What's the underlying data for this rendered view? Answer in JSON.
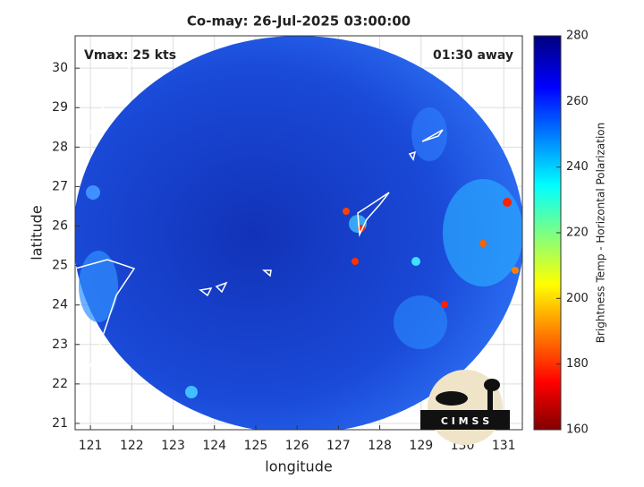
{
  "chart_data": {
    "type": "map",
    "title": "Co-may: 26-Jul-2025 03:00:00",
    "xlabel": "longitude",
    "ylabel": "latitude",
    "annotations": [
      "Vmax: 25 kts",
      "01:30 away"
    ],
    "xlim": [
      120.63,
      131.45
    ],
    "xticks": [
      121,
      122,
      123,
      124,
      125,
      126,
      127,
      128,
      129,
      130,
      131
    ],
    "ylim": [
      20.84,
      30.82
    ],
    "yticks": [
      21,
      22,
      23,
      24,
      25,
      26,
      27,
      28,
      29,
      30
    ],
    "grid": true,
    "colorbar": {
      "label": "Brightness Temp - Horizontal Polarization",
      "lim": [
        160,
        280
      ],
      "ticks": [
        160,
        180,
        200,
        220,
        240,
        260,
        280
      ],
      "colormap": "jet"
    },
    "logo": "C I M S S"
  }
}
